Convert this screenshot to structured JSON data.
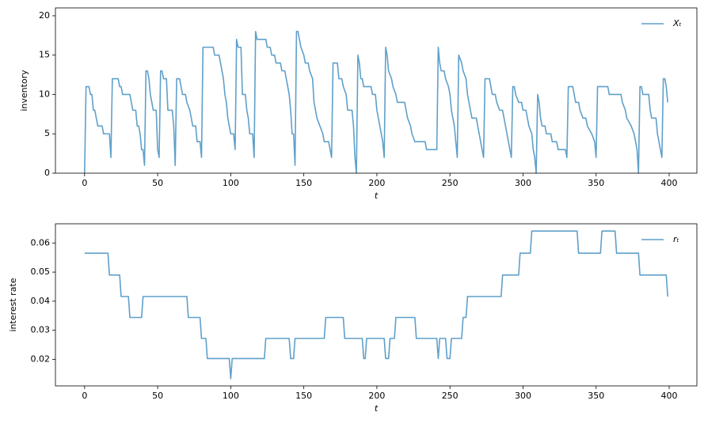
{
  "chart_data": [
    {
      "type": "line",
      "xlabel": "t",
      "ylabel": "inventory",
      "xlim": [
        -19.95,
        418.95
      ],
      "ylim": [
        0,
        21
      ],
      "xticks": [
        0,
        50,
        100,
        150,
        200,
        250,
        300,
        350,
        400
      ],
      "yticks": [
        0,
        5,
        10,
        15,
        20
      ],
      "legend": "upper right",
      "x": [
        0,
        1,
        3,
        4,
        5,
        6,
        7,
        8,
        9,
        12,
        13,
        17,
        18,
        19,
        23,
        24,
        25,
        26,
        31,
        32,
        33,
        35,
        36,
        37,
        38,
        39,
        40,
        41,
        42,
        43,
        44,
        45,
        46,
        47,
        49,
        50,
        51,
        52,
        53,
        54,
        56,
        57,
        60,
        61,
        62,
        63,
        65,
        66,
        67,
        69,
        70,
        72,
        74,
        76,
        77,
        79,
        80,
        81,
        88,
        89,
        92,
        93,
        95,
        96,
        97,
        98,
        100,
        102,
        103,
        104,
        105,
        107,
        108,
        110,
        111,
        112,
        113,
        115,
        116,
        117,
        118,
        124,
        125,
        127,
        128,
        130,
        131,
        134,
        135,
        137,
        138,
        140,
        141,
        142,
        143,
        144,
        145,
        146,
        147,
        148,
        150,
        151,
        153,
        154,
        156,
        157,
        159,
        161,
        163,
        164,
        167,
        168,
        169,
        170,
        173,
        174,
        176,
        177,
        179,
        180,
        183,
        184,
        185,
        186,
        187,
        188,
        189,
        190,
        191,
        196,
        197,
        199,
        200,
        202,
        204,
        205,
        206,
        207,
        208,
        210,
        211,
        213,
        214,
        219,
        220,
        221,
        223,
        224,
        226,
        233,
        234,
        241,
        242,
        243,
        244,
        246,
        247,
        249,
        250,
        251,
        252,
        253,
        254,
        255,
        256,
        258,
        259,
        261,
        262,
        264,
        265,
        268,
        269,
        270,
        271,
        272,
        273,
        274,
        277,
        278,
        279,
        281,
        282,
        284,
        286,
        287,
        288,
        290,
        291,
        292,
        293,
        294,
        295,
        297,
        299,
        300,
        302,
        303,
        304,
        306,
        307,
        308,
        309,
        310,
        311,
        312,
        313,
        315,
        316,
        319,
        320,
        323,
        324,
        329,
        330,
        331,
        334,
        335,
        336,
        338,
        339,
        341,
        343,
        344,
        347,
        349,
        350,
        351,
        358,
        359,
        367,
        368,
        370,
        371,
        374,
        376,
        377,
        378,
        379,
        380,
        381,
        382,
        386,
        387,
        388,
        391,
        392,
        393,
        394,
        395,
        396,
        397,
        398,
        399
      ],
      "series": [
        {
          "name": "Xₜ",
          "color": "#5fa0ca",
          "values": [
            0,
            11,
            11,
            10,
            10,
            8,
            8,
            7,
            6,
            6,
            5,
            5,
            2,
            12,
            12,
            11,
            11,
            10,
            10,
            9,
            8,
            8,
            6,
            6,
            5,
            3,
            3,
            1,
            13,
            13,
            12,
            10,
            9,
            8,
            8,
            3,
            2,
            13,
            13,
            12,
            12,
            8,
            8,
            6,
            1,
            12,
            12,
            11,
            10,
            10,
            9,
            8,
            6,
            6,
            4,
            4,
            2,
            16,
            16,
            15,
            15,
            14,
            12,
            10,
            9,
            7,
            5,
            5,
            3,
            17,
            16,
            16,
            10,
            10,
            8,
            7,
            5,
            5,
            2,
            18,
            17,
            17,
            16,
            16,
            15,
            15,
            14,
            14,
            13,
            13,
            12,
            10,
            8,
            5,
            5,
            1,
            18,
            18,
            17,
            16,
            15,
            14,
            14,
            13,
            12,
            9,
            7,
            6,
            5,
            4,
            4,
            3,
            2,
            14,
            14,
            12,
            12,
            11,
            10,
            8,
            8,
            6,
            2,
            0,
            15,
            14,
            12,
            12,
            11,
            11,
            10,
            10,
            8,
            6,
            4,
            2,
            16,
            15,
            13,
            12,
            11,
            10,
            9,
            9,
            8,
            7,
            6,
            5,
            4,
            4,
            3,
            3,
            16,
            14,
            13,
            13,
            12,
            11,
            10,
            8,
            7,
            6,
            4,
            2,
            15,
            14,
            13,
            12,
            10,
            8,
            7,
            7,
            6,
            5,
            4,
            3,
            2,
            12,
            12,
            11,
            10,
            10,
            9,
            8,
            8,
            7,
            6,
            4,
            3,
            2,
            11,
            11,
            10,
            9,
            9,
            8,
            8,
            7,
            6,
            5,
            3,
            2,
            0,
            10,
            9,
            7,
            6,
            6,
            5,
            5,
            4,
            4,
            3,
            3,
            2,
            11,
            11,
            10,
            9,
            9,
            8,
            7,
            7,
            6,
            5,
            4,
            2,
            11,
            11,
            10,
            10,
            9,
            8,
            7,
            6,
            5,
            4,
            3,
            0,
            11,
            11,
            10,
            10,
            8,
            7,
            7,
            5,
            4,
            3,
            2,
            12,
            12,
            11,
            9
          ]
        }
      ]
    },
    {
      "type": "line",
      "xlabel": "t",
      "ylabel": "interest rate",
      "xlim": [
        -19.95,
        418.95
      ],
      "ylim": [
        0.0109,
        0.0666
      ],
      "xticks": [
        0,
        50,
        100,
        150,
        200,
        250,
        300,
        350,
        400
      ],
      "yticks": [
        0.02,
        0.03,
        0.04,
        0.05,
        0.06
      ],
      "legend": "upper right",
      "x": [
        0,
        16,
        17,
        24,
        25,
        30,
        31,
        39,
        40,
        70,
        71,
        79,
        80,
        83,
        84,
        99,
        100,
        101,
        123,
        124,
        140,
        141,
        143,
        144,
        164,
        165,
        177,
        178,
        190,
        191,
        192,
        193,
        205,
        206,
        208,
        209,
        212,
        213,
        226,
        227,
        241,
        242,
        243,
        247,
        248,
        250,
        251,
        258,
        259,
        261,
        262,
        285,
        286,
        297,
        298,
        305,
        306,
        337,
        338,
        353,
        354,
        363,
        364,
        379,
        380,
        398,
        399
      ],
      "series": [
        {
          "name": "rₜ",
          "color": "#5fa0ca",
          "values": [
            0.0565,
            0.0565,
            0.049,
            0.049,
            0.0416,
            0.0416,
            0.0344,
            0.0344,
            0.0416,
            0.0416,
            0.0344,
            0.0344,
            0.0272,
            0.0272,
            0.0203,
            0.0203,
            0.0134,
            0.0203,
            0.0203,
            0.0272,
            0.0272,
            0.0203,
            0.0203,
            0.0272,
            0.0272,
            0.0344,
            0.0344,
            0.0272,
            0.0272,
            0.0203,
            0.0203,
            0.0272,
            0.0272,
            0.0203,
            0.0203,
            0.0272,
            0.0272,
            0.0344,
            0.0344,
            0.0272,
            0.0272,
            0.0203,
            0.0272,
            0.0272,
            0.0203,
            0.0203,
            0.0272,
            0.0272,
            0.0344,
            0.0344,
            0.0416,
            0.0416,
            0.049,
            0.049,
            0.0565,
            0.0565,
            0.0641,
            0.0641,
            0.0565,
            0.0565,
            0.0641,
            0.0641,
            0.0565,
            0.0565,
            0.049,
            0.049,
            0.0416
          ]
        }
      ]
    }
  ]
}
